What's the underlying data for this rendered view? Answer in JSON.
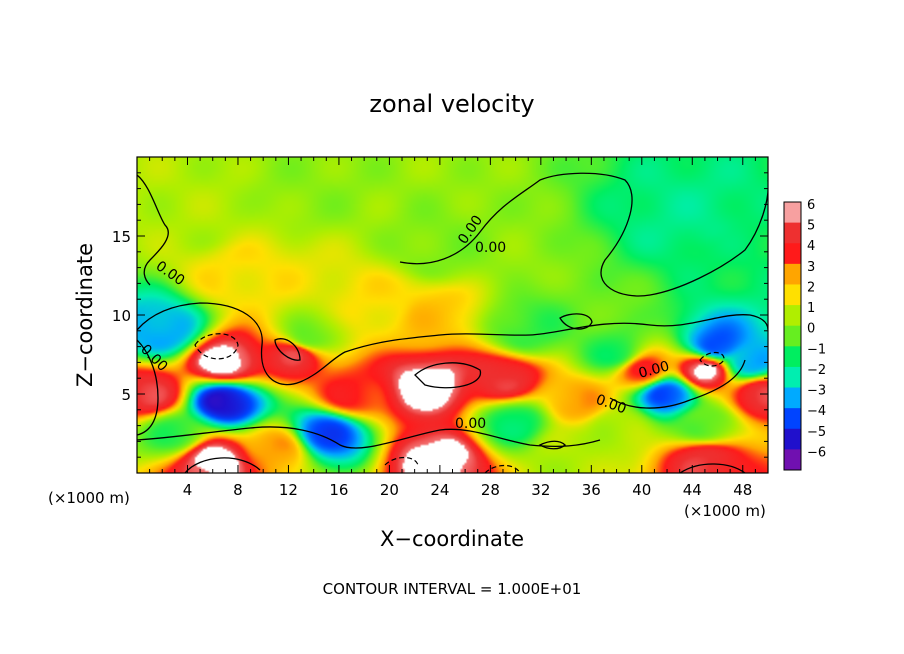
{
  "chart_data": {
    "type": "heatmap",
    "title": "zonal velocity",
    "xlabel": "X−coordinate",
    "ylabel": "Z−coordinate",
    "x_unit_left": "(×1000 m)",
    "x_unit_right": "(×1000 m)",
    "xlim": [
      0,
      50
    ],
    "ylim": [
      0,
      20
    ],
    "x_ticks": [
      4,
      8,
      12,
      16,
      20,
      24,
      28,
      32,
      36,
      40,
      44,
      48
    ],
    "y_ticks": [
      5,
      10,
      15
    ],
    "footer": "CONTOUR INTERVAL = 1.000E+01",
    "contour_label": "0.00",
    "contour_label_count": 7,
    "colorbar": {
      "ticks": [
        6,
        5,
        4,
        3,
        2,
        1,
        0,
        -1,
        -2,
        -3,
        -4,
        -5,
        -6
      ],
      "tick_labels": [
        "6",
        "5",
        "4",
        "3",
        "2",
        "1",
        "0",
        "−1",
        "−2",
        "−3",
        "−4",
        "−5",
        "−6"
      ],
      "colors": [
        "#f7a0a0",
        "#ee3030",
        "#ff1a1a",
        "#ffa500",
        "#ffe000",
        "#b0ee00",
        "#66ee20",
        "#00ee60",
        "#00eeb0",
        "#00aaff",
        "#0044ff",
        "#2010cc",
        "#7010b0"
      ]
    },
    "grid": false,
    "legend": "colorbar-right",
    "features": [
      {
        "x": 14,
        "z": 18,
        "value": 0.5
      },
      {
        "x": 5,
        "z": 16,
        "value": 1
      },
      {
        "x": 44,
        "z": 16,
        "value": -1.5
      },
      {
        "x": 48,
        "z": 14,
        "value": -1
      },
      {
        "x": 24,
        "z": 14,
        "value": 0.3
      },
      {
        "x": 20,
        "z": 10.5,
        "value": 2
      },
      {
        "x": 23,
        "z": 10,
        "value": 2.5
      },
      {
        "x": 8,
        "z": 12.5,
        "value": 2
      },
      {
        "x": 2,
        "z": 9,
        "value": -3
      },
      {
        "x": 7,
        "z": 4.5,
        "value": -5
      },
      {
        "x": 7,
        "z": 7,
        "value": 6
      },
      {
        "x": 12.5,
        "z": 7.5,
        "value": 5
      },
      {
        "x": 13.5,
        "z": 8.5,
        "value": 0
      },
      {
        "x": 23,
        "z": 5.5,
        "value": 6
      },
      {
        "x": 17,
        "z": 5,
        "value": 4
      },
      {
        "x": 29,
        "z": 6,
        "value": 5
      },
      {
        "x": 31,
        "z": 9,
        "value": -0.5
      },
      {
        "x": 38,
        "z": 7.5,
        "value": -0.8
      },
      {
        "x": 40,
        "z": 6.5,
        "value": 4
      },
      {
        "x": 42,
        "z": 5,
        "value": -4
      },
      {
        "x": 45,
        "z": 6.5,
        "value": 6
      },
      {
        "x": 46,
        "z": 8,
        "value": -4
      },
      {
        "x": 48.5,
        "z": 7,
        "value": -3
      },
      {
        "x": 49.5,
        "z": 5,
        "value": 5
      },
      {
        "x": 1,
        "z": 5,
        "value": 5
      },
      {
        "x": 3,
        "z": 2.5,
        "value": -0.5
      },
      {
        "x": 6,
        "z": 0.8,
        "value": 6
      },
      {
        "x": 11,
        "z": 1.5,
        "value": 3
      },
      {
        "x": 15,
        "z": 2.5,
        "value": -4
      },
      {
        "x": 24,
        "z": 0.8,
        "value": 6
      },
      {
        "x": 34,
        "z": 1.5,
        "value": 1
      },
      {
        "x": 38,
        "z": 3,
        "value": 1
      },
      {
        "x": 45,
        "z": 0.8,
        "value": 5
      },
      {
        "x": 45,
        "z": 3,
        "value": 0
      },
      {
        "x": 30,
        "z": 3.2,
        "value": -1
      },
      {
        "x": 35,
        "z": 4.5,
        "value": 3
      }
    ]
  }
}
